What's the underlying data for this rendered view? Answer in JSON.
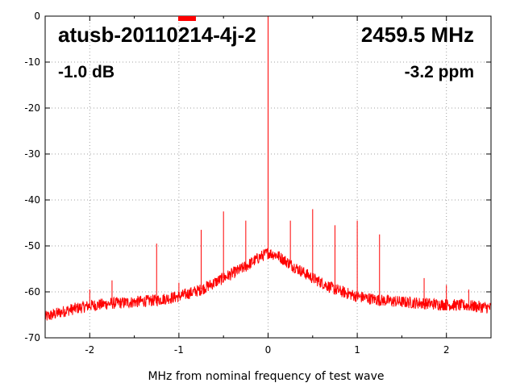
{
  "chart_data": {
    "type": "line",
    "title": "atusb-20110214-4j-2",
    "xlabel": "MHz from nominal frequency of test wave",
    "ylabel": "",
    "xlim": [
      -2.5,
      2.5
    ],
    "ylim": [
      -70,
      0
    ],
    "x_ticks": [
      -2,
      -1,
      0,
      1,
      2
    ],
    "y_ticks": [
      0,
      -10,
      -20,
      -30,
      -40,
      -50,
      -60,
      -70
    ],
    "grid": true,
    "annotations": {
      "frequency": "2459.5 MHz",
      "level": "-1.0 dB",
      "offset": "-3.2 ppm"
    },
    "series": [
      {
        "color": "#ff0000",
        "noise_floor": {
          "x": [
            -2.5,
            -2.25,
            -2.0,
            -1.75,
            -1.5,
            -1.25,
            -1.0,
            -0.75,
            -0.5,
            -0.25,
            -0.1,
            0.0,
            0.1,
            0.25,
            0.5,
            0.75,
            1.0,
            1.25,
            1.5,
            1.75,
            2.0,
            2.25,
            2.5
          ],
          "y": [
            -65.5,
            -64.0,
            -63.0,
            -62.5,
            -62.2,
            -61.8,
            -61.0,
            -59.5,
            -57.0,
            -54.5,
            -52.5,
            -51.5,
            -52.0,
            -54.0,
            -57.0,
            -59.5,
            -61.0,
            -61.8,
            -62.2,
            -62.5,
            -62.8,
            -63.0,
            -63.5
          ]
        },
        "spurs": [
          {
            "x": 0.0,
            "y": 0.0
          },
          {
            "x": -2.0,
            "y": -59.5
          },
          {
            "x": -1.75,
            "y": -57.5
          },
          {
            "x": -1.25,
            "y": -49.5
          },
          {
            "x": -1.0,
            "y": -58.0
          },
          {
            "x": -0.75,
            "y": -46.5
          },
          {
            "x": -0.5,
            "y": -42.5
          },
          {
            "x": -0.25,
            "y": -44.5
          },
          {
            "x": 0.25,
            "y": -44.5
          },
          {
            "x": 0.5,
            "y": -42.0
          },
          {
            "x": 0.75,
            "y": -45.5
          },
          {
            "x": 1.0,
            "y": -44.5
          },
          {
            "x": 1.25,
            "y": -47.5
          },
          {
            "x": 1.75,
            "y": -57.0
          },
          {
            "x": 2.0,
            "y": -58.5
          },
          {
            "x": 2.25,
            "y": -59.5
          }
        ]
      }
    ]
  }
}
